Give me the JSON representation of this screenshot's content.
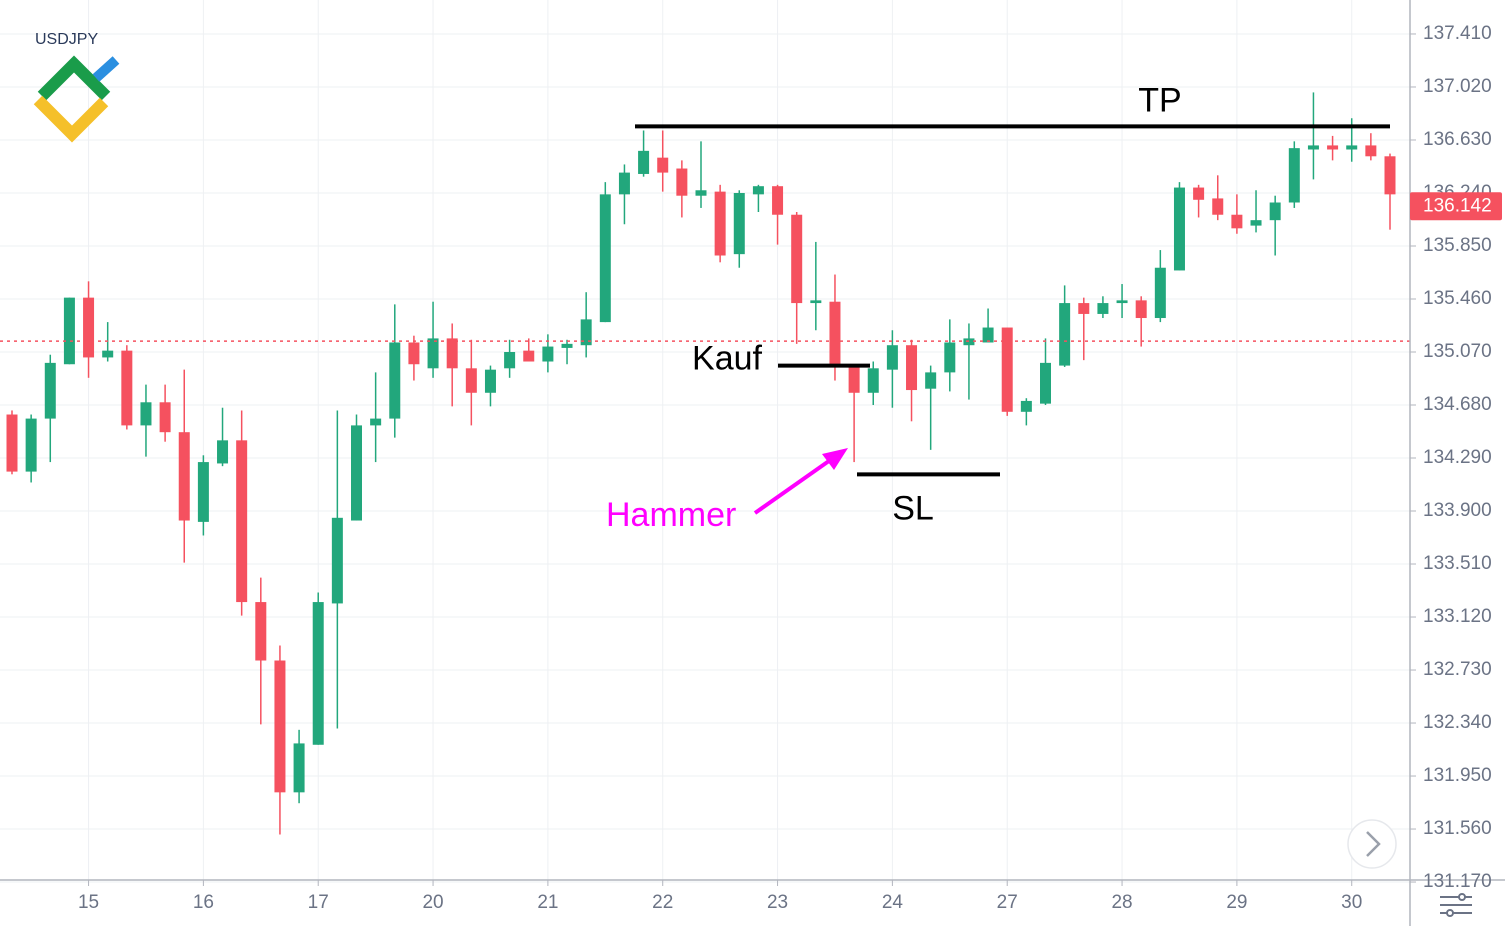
{
  "chart_data": {
    "type": "candlestick",
    "symbol": "USDJPY",
    "categories": [
      null,
      null,
      null,
      null,
      "15",
      null,
      null,
      null,
      null,
      null,
      "16",
      null,
      null,
      null,
      null,
      null,
      "17",
      null,
      null,
      null,
      null,
      null,
      "20",
      null,
      null,
      null,
      null,
      null,
      "21",
      null,
      null,
      null,
      null,
      null,
      "22",
      null,
      null,
      null,
      null,
      null,
      "23",
      null,
      null,
      null,
      null,
      null,
      "24",
      null,
      null,
      null,
      null,
      null,
      "27",
      null,
      null,
      null,
      null,
      null,
      "28",
      null,
      null,
      null,
      null,
      null,
      "29",
      null,
      null,
      null,
      null,
      null,
      "30",
      null,
      null
    ],
    "open": [
      134.61,
      134.19,
      134.58,
      134.98,
      135.47,
      135.03,
      135.08,
      134.53,
      134.7,
      134.48,
      133.82,
      134.25,
      134.42,
      133.23,
      132.8,
      131.83,
      132.18,
      133.22,
      133.83,
      134.53,
      134.58,
      135.14,
      134.95,
      135.17,
      134.95,
      134.77,
      134.95,
      135.08,
      135.0,
      135.1,
      135.12,
      135.29,
      136.23,
      136.38,
      136.5,
      136.42,
      136.22,
      136.25,
      135.79,
      136.23,
      136.29,
      136.08,
      135.43,
      135.44,
      134.97,
      134.77,
      134.94,
      135.12,
      134.8,
      134.92,
      135.12,
      135.14,
      135.25,
      134.63,
      134.69,
      134.97,
      135.43,
      135.35,
      135.43,
      135.45,
      135.32,
      135.67,
      136.28,
      136.2,
      136.08,
      136.0,
      136.04,
      136.17,
      136.56,
      136.59,
      136.56,
      136.59,
      136.51
    ],
    "high": [
      134.64,
      134.61,
      135.05,
      135.47,
      135.59,
      135.29,
      135.12,
      134.83,
      134.83,
      134.94,
      134.31,
      134.66,
      134.64,
      133.41,
      132.91,
      132.29,
      133.3,
      134.64,
      134.61,
      134.92,
      135.42,
      135.19,
      135.44,
      135.28,
      135.16,
      134.97,
      135.16,
      135.17,
      135.2,
      135.16,
      135.51,
      136.32,
      136.45,
      136.7,
      136.7,
      136.48,
      136.62,
      136.3,
      136.26,
      136.3,
      136.3,
      136.1,
      135.88,
      135.64,
      134.97,
      135.0,
      135.23,
      135.16,
      134.97,
      135.31,
      135.28,
      135.39,
      135.25,
      134.73,
      135.17,
      135.56,
      135.47,
      135.48,
      135.57,
      135.48,
      135.82,
      136.32,
      136.3,
      136.37,
      136.23,
      136.26,
      136.22,
      136.62,
      136.98,
      136.66,
      136.79,
      136.68,
      136.53
    ],
    "low": [
      134.17,
      134.11,
      134.26,
      134.98,
      134.88,
      135.0,
      134.5,
      134.3,
      134.41,
      133.52,
      133.72,
      134.23,
      133.13,
      132.33,
      131.52,
      131.75,
      132.18,
      132.3,
      133.83,
      134.26,
      134.44,
      134.86,
      134.88,
      134.67,
      134.53,
      134.67,
      134.88,
      135.0,
      134.92,
      134.98,
      135.03,
      135.29,
      136.01,
      136.36,
      136.25,
      136.06,
      136.13,
      135.73,
      135.69,
      136.1,
      135.86,
      135.13,
      135.23,
      134.86,
      134.26,
      134.68,
      134.66,
      134.56,
      134.35,
      134.78,
      134.72,
      135.14,
      134.6,
      134.53,
      134.68,
      134.96,
      135.01,
      135.32,
      135.32,
      135.11,
      135.29,
      135.67,
      136.06,
      136.04,
      135.94,
      135.95,
      135.78,
      136.13,
      136.34,
      136.48,
      136.47,
      136.48,
      135.97
    ],
    "close": [
      134.19,
      134.58,
      134.99,
      135.47,
      135.03,
      135.08,
      134.53,
      134.7,
      134.48,
      133.83,
      134.26,
      134.42,
      133.23,
      132.8,
      131.83,
      132.19,
      133.23,
      133.85,
      134.53,
      134.58,
      135.14,
      134.98,
      135.17,
      134.95,
      134.77,
      134.94,
      135.07,
      135.0,
      135.11,
      135.13,
      135.31,
      136.23,
      136.39,
      136.55,
      136.39,
      136.22,
      136.26,
      135.78,
      136.24,
      136.29,
      136.08,
      135.43,
      135.45,
      134.97,
      134.77,
      134.95,
      135.12,
      134.79,
      134.92,
      135.14,
      135.17,
      135.25,
      134.63,
      134.71,
      134.99,
      135.43,
      135.35,
      135.43,
      135.45,
      135.32,
      135.69,
      136.28,
      136.19,
      136.08,
      135.98,
      136.04,
      136.17,
      136.57,
      136.59,
      136.56,
      136.59,
      136.51,
      136.23
    ],
    "up_color": "#22a77c",
    "down_color": "#f5515f",
    "ylim": [
      131.185,
      137.66
    ],
    "yticks": [
      {
        "value": 137.41,
        "label": "137.410"
      },
      {
        "value": 137.02,
        "label": "137.020"
      },
      {
        "value": 136.63,
        "label": "136.630"
      },
      {
        "value": 136.24,
        "label": "136.240"
      },
      {
        "value": 135.85,
        "label": "135.850"
      },
      {
        "value": 135.46,
        "label": "135.460"
      },
      {
        "value": 135.07,
        "label": "135.070"
      },
      {
        "value": 134.68,
        "label": "134.680"
      },
      {
        "value": 134.29,
        "label": "134.290"
      },
      {
        "value": 133.9,
        "label": "133.900"
      },
      {
        "value": 133.51,
        "label": "133.510"
      },
      {
        "value": 133.12,
        "label": "133.120"
      },
      {
        "value": 132.73,
        "label": "132.730"
      },
      {
        "value": 132.34,
        "label": "132.340"
      },
      {
        "value": 131.95,
        "label": "131.950"
      },
      {
        "value": 131.56,
        "label": "131.560"
      },
      {
        "value": 131.17,
        "label": "131.170"
      }
    ],
    "grid": true,
    "last_price": 136.142,
    "reference_line": 135.15,
    "levels": [
      {
        "label": "TP",
        "value": 136.73
      },
      {
        "label": "Kauf",
        "value": 134.97
      },
      {
        "label": "SL",
        "value": 134.17
      }
    ],
    "annotation": {
      "text": "Hammer",
      "color": "#ff00ff"
    }
  }
}
